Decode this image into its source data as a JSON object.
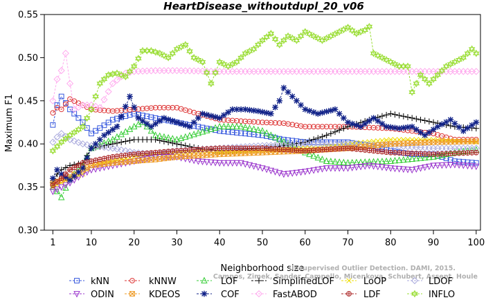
{
  "chart_data": {
    "type": "line",
    "title": "HeartDisease_withoutdupl_20_v06",
    "xlabel": "Neighborhood size",
    "ylabel": "Maximum F1",
    "xlim": [
      1,
      100
    ],
    "ylim": [
      0.3,
      0.55
    ],
    "x_ticks": [
      1,
      10,
      20,
      30,
      40,
      50,
      60,
      70,
      80,
      90,
      100
    ],
    "y_ticks": [
      "0.30",
      "0.35",
      "0.40",
      "0.45",
      "0.50",
      "0.55"
    ],
    "grid": false,
    "legend_position": "bottom",
    "watermark": [
      "Unsupervised Outlier Detection. DAMI, 2015.",
      "Campos, Zimek, Sander, Campello, Micenkova, Schubert, Assent, Houle"
    ],
    "series": [
      {
        "name": "kNN",
        "color": "#3355dd",
        "marker": "square",
        "points": [
          [
            1,
            0.422
          ],
          [
            2,
            0.445
          ],
          [
            3,
            0.455
          ],
          [
            5,
            0.44
          ],
          [
            8,
            0.425
          ],
          [
            10,
            0.412
          ],
          [
            15,
            0.428
          ],
          [
            20,
            0.435
          ],
          [
            25,
            0.43
          ],
          [
            30,
            0.425
          ],
          [
            40,
            0.415
          ],
          [
            50,
            0.41
          ],
          [
            55,
            0.405
          ],
          [
            60,
            0.402
          ],
          [
            70,
            0.402
          ],
          [
            75,
            0.398
          ],
          [
            80,
            0.392
          ],
          [
            85,
            0.388
          ],
          [
            90,
            0.388
          ],
          [
            95,
            0.38
          ],
          [
            100,
            0.378
          ]
        ]
      },
      {
        "name": "kNNW",
        "color": "#dd3333",
        "marker": "circle",
        "points": [
          [
            1,
            0.436
          ],
          [
            2,
            0.442
          ],
          [
            3,
            0.44
          ],
          [
            5,
            0.452
          ],
          [
            8,
            0.445
          ],
          [
            10,
            0.44
          ],
          [
            15,
            0.438
          ],
          [
            20,
            0.44
          ],
          [
            25,
            0.442
          ],
          [
            30,
            0.442
          ],
          [
            35,
            0.435
          ],
          [
            40,
            0.428
          ],
          [
            50,
            0.425
          ],
          [
            55,
            0.424
          ],
          [
            60,
            0.42
          ],
          [
            70,
            0.42
          ],
          [
            80,
            0.418
          ],
          [
            90,
            0.412
          ],
          [
            95,
            0.405
          ],
          [
            100,
            0.405
          ]
        ]
      },
      {
        "name": "LOF",
        "color": "#33cc33",
        "marker": "triangle",
        "points": [
          [
            1,
            0.35
          ],
          [
            2,
            0.345
          ],
          [
            3,
            0.338
          ],
          [
            5,
            0.36
          ],
          [
            8,
            0.375
          ],
          [
            10,
            0.395
          ],
          [
            15,
            0.405
          ],
          [
            20,
            0.42
          ],
          [
            22,
            0.425
          ],
          [
            25,
            0.41
          ],
          [
            30,
            0.405
          ],
          [
            40,
            0.42
          ],
          [
            45,
            0.42
          ],
          [
            50,
            0.415
          ],
          [
            60,
            0.39
          ],
          [
            65,
            0.38
          ],
          [
            70,
            0.378
          ],
          [
            80,
            0.38
          ],
          [
            90,
            0.385
          ],
          [
            95,
            0.39
          ],
          [
            100,
            0.393
          ]
        ]
      },
      {
        "name": "SimplifiedLOF",
        "color": "#000000",
        "marker": "plus",
        "points": [
          [
            1,
            0.355
          ],
          [
            2,
            0.365
          ],
          [
            3,
            0.37
          ],
          [
            5,
            0.375
          ],
          [
            8,
            0.378
          ],
          [
            10,
            0.395
          ],
          [
            15,
            0.4
          ],
          [
            20,
            0.405
          ],
          [
            25,
            0.405
          ],
          [
            30,
            0.4
          ],
          [
            35,
            0.395
          ],
          [
            40,
            0.392
          ],
          [
            50,
            0.395
          ],
          [
            55,
            0.398
          ],
          [
            60,
            0.402
          ],
          [
            65,
            0.41
          ],
          [
            70,
            0.42
          ],
          [
            75,
            0.428
          ],
          [
            80,
            0.435
          ],
          [
            85,
            0.43
          ],
          [
            90,
            0.425
          ],
          [
            95,
            0.42
          ],
          [
            100,
            0.418
          ]
        ]
      },
      {
        "name": "LoOP",
        "color": "#eedd00",
        "marker": "x",
        "points": [
          [
            1,
            0.35
          ],
          [
            3,
            0.355
          ],
          [
            5,
            0.36
          ],
          [
            8,
            0.365
          ],
          [
            10,
            0.375
          ],
          [
            15,
            0.38
          ],
          [
            20,
            0.385
          ],
          [
            25,
            0.388
          ],
          [
            30,
            0.39
          ],
          [
            35,
            0.392
          ],
          [
            40,
            0.39
          ],
          [
            50,
            0.392
          ],
          [
            60,
            0.395
          ],
          [
            70,
            0.4
          ],
          [
            80,
            0.405
          ],
          [
            90,
            0.405
          ],
          [
            100,
            0.402
          ]
        ]
      },
      {
        "name": "LDOF",
        "color": "#aaaadd",
        "marker": "diamond",
        "points": [
          [
            1,
            0.402
          ],
          [
            2,
            0.408
          ],
          [
            3,
            0.412
          ],
          [
            5,
            0.405
          ],
          [
            8,
            0.4
          ],
          [
            10,
            0.398
          ],
          [
            15,
            0.395
          ],
          [
            20,
            0.39
          ],
          [
            25,
            0.388
          ],
          [
            30,
            0.392
          ],
          [
            40,
            0.395
          ],
          [
            50,
            0.398
          ],
          [
            60,
            0.4
          ],
          [
            70,
            0.4
          ],
          [
            80,
            0.398
          ],
          [
            90,
            0.395
          ],
          [
            100,
            0.395
          ]
        ]
      },
      {
        "name": "ODIN",
        "color": "#9933cc",
        "marker": "triangle-down",
        "points": [
          [
            1,
            0.345
          ],
          [
            3,
            0.35
          ],
          [
            5,
            0.355
          ],
          [
            8,
            0.365
          ],
          [
            10,
            0.37
          ],
          [
            15,
            0.375
          ],
          [
            20,
            0.38
          ],
          [
            25,
            0.385
          ],
          [
            30,
            0.385
          ],
          [
            35,
            0.38
          ],
          [
            40,
            0.378
          ],
          [
            45,
            0.378
          ],
          [
            50,
            0.372
          ],
          [
            55,
            0.365
          ],
          [
            60,
            0.368
          ],
          [
            65,
            0.372
          ],
          [
            70,
            0.372
          ],
          [
            75,
            0.375
          ],
          [
            80,
            0.372
          ],
          [
            85,
            0.37
          ],
          [
            90,
            0.375
          ],
          [
            95,
            0.376
          ],
          [
            100,
            0.374
          ]
        ]
      },
      {
        "name": "KDEOS",
        "color": "#ee9922",
        "marker": "square-x",
        "points": [
          [
            1,
            0.355
          ],
          [
            3,
            0.358
          ],
          [
            5,
            0.362
          ],
          [
            8,
            0.37
          ],
          [
            10,
            0.375
          ],
          [
            15,
            0.378
          ],
          [
            20,
            0.38
          ],
          [
            25,
            0.382
          ],
          [
            30,
            0.385
          ],
          [
            40,
            0.388
          ],
          [
            50,
            0.39
          ],
          [
            60,
            0.392
          ],
          [
            70,
            0.395
          ],
          [
            80,
            0.4
          ],
          [
            90,
            0.402
          ],
          [
            100,
            0.403
          ]
        ]
      },
      {
        "name": "COF",
        "color": "#112288",
        "marker": "star",
        "points": [
          [
            1,
            0.36
          ],
          [
            2,
            0.37
          ],
          [
            3,
            0.365
          ],
          [
            5,
            0.358
          ],
          [
            8,
            0.372
          ],
          [
            10,
            0.395
          ],
          [
            13,
            0.41
          ],
          [
            16,
            0.42
          ],
          [
            19,
            0.455
          ],
          [
            21,
            0.43
          ],
          [
            24,
            0.42
          ],
          [
            27,
            0.43
          ],
          [
            30,
            0.425
          ],
          [
            33,
            0.42
          ],
          [
            36,
            0.435
          ],
          [
            40,
            0.43
          ],
          [
            43,
            0.44
          ],
          [
            46,
            0.44
          ],
          [
            49,
            0.438
          ],
          [
            52,
            0.435
          ],
          [
            54,
            0.45
          ],
          [
            55,
            0.465
          ],
          [
            57,
            0.455
          ],
          [
            60,
            0.44
          ],
          [
            63,
            0.435
          ],
          [
            67,
            0.44
          ],
          [
            70,
            0.425
          ],
          [
            73,
            0.42
          ],
          [
            76,
            0.43
          ],
          [
            79,
            0.42
          ],
          [
            82,
            0.418
          ],
          [
            85,
            0.42
          ],
          [
            88,
            0.41
          ],
          [
            91,
            0.42
          ],
          [
            94,
            0.428
          ],
          [
            97,
            0.415
          ],
          [
            100,
            0.425
          ]
        ]
      },
      {
        "name": "FastABOD",
        "color": "#ffaaee",
        "marker": "diamond",
        "points": [
          [
            1,
            0.45
          ],
          [
            2,
            0.475
          ],
          [
            3,
            0.485
          ],
          [
            4,
            0.505
          ],
          [
            5,
            0.47
          ],
          [
            6,
            0.44
          ],
          [
            8,
            0.445
          ],
          [
            10,
            0.445
          ],
          [
            12,
            0.442
          ],
          [
            15,
            0.47
          ],
          [
            18,
            0.482
          ],
          [
            20,
            0.484
          ],
          [
            25,
            0.485
          ],
          [
            30,
            0.485
          ],
          [
            40,
            0.484
          ],
          [
            50,
            0.484
          ],
          [
            60,
            0.484
          ],
          [
            70,
            0.484
          ],
          [
            80,
            0.484
          ],
          [
            90,
            0.484
          ],
          [
            100,
            0.484
          ]
        ]
      },
      {
        "name": "LDF",
        "color": "#aa2222",
        "marker": "circle-plus",
        "points": [
          [
            1,
            0.352
          ],
          [
            3,
            0.36
          ],
          [
            5,
            0.37
          ],
          [
            8,
            0.378
          ],
          [
            10,
            0.38
          ],
          [
            15,
            0.385
          ],
          [
            20,
            0.388
          ],
          [
            25,
            0.39
          ],
          [
            30,
            0.392
          ],
          [
            40,
            0.395
          ],
          [
            50,
            0.395
          ],
          [
            60,
            0.392
          ],
          [
            70,
            0.395
          ],
          [
            80,
            0.39
          ],
          [
            90,
            0.388
          ],
          [
            100,
            0.39
          ]
        ]
      },
      {
        "name": "INFLO",
        "color": "#99dd33",
        "marker": "star-of-david",
        "points": [
          [
            1,
            0.392
          ],
          [
            3,
            0.402
          ],
          [
            5,
            0.41
          ],
          [
            8,
            0.42
          ],
          [
            10,
            0.44
          ],
          [
            12,
            0.47
          ],
          [
            14,
            0.48
          ],
          [
            16,
            0.482
          ],
          [
            18,
            0.478
          ],
          [
            20,
            0.49
          ],
          [
            22,
            0.508
          ],
          [
            24,
            0.508
          ],
          [
            26,
            0.505
          ],
          [
            28,
            0.5
          ],
          [
            30,
            0.51
          ],
          [
            32,
            0.515
          ],
          [
            34,
            0.5
          ],
          [
            36,
            0.495
          ],
          [
            38,
            0.47
          ],
          [
            40,
            0.495
          ],
          [
            42,
            0.49
          ],
          [
            44,
            0.495
          ],
          [
            46,
            0.505
          ],
          [
            48,
            0.51
          ],
          [
            50,
            0.52
          ],
          [
            52,
            0.528
          ],
          [
            54,
            0.515
          ],
          [
            56,
            0.525
          ],
          [
            58,
            0.52
          ],
          [
            60,
            0.53
          ],
          [
            62,
            0.525
          ],
          [
            64,
            0.52
          ],
          [
            66,
            0.525
          ],
          [
            68,
            0.53
          ],
          [
            70,
            0.535
          ],
          [
            72,
            0.528
          ],
          [
            74,
            0.532
          ],
          [
            75,
            0.536
          ],
          [
            76,
            0.505
          ],
          [
            78,
            0.5
          ],
          [
            80,
            0.495
          ],
          [
            82,
            0.49
          ],
          [
            84,
            0.49
          ],
          [
            85,
            0.46
          ],
          [
            87,
            0.48
          ],
          [
            89,
            0.47
          ],
          [
            91,
            0.48
          ],
          [
            93,
            0.49
          ],
          [
            95,
            0.495
          ],
          [
            97,
            0.5
          ],
          [
            99,
            0.51
          ],
          [
            100,
            0.505
          ]
        ]
      }
    ]
  }
}
